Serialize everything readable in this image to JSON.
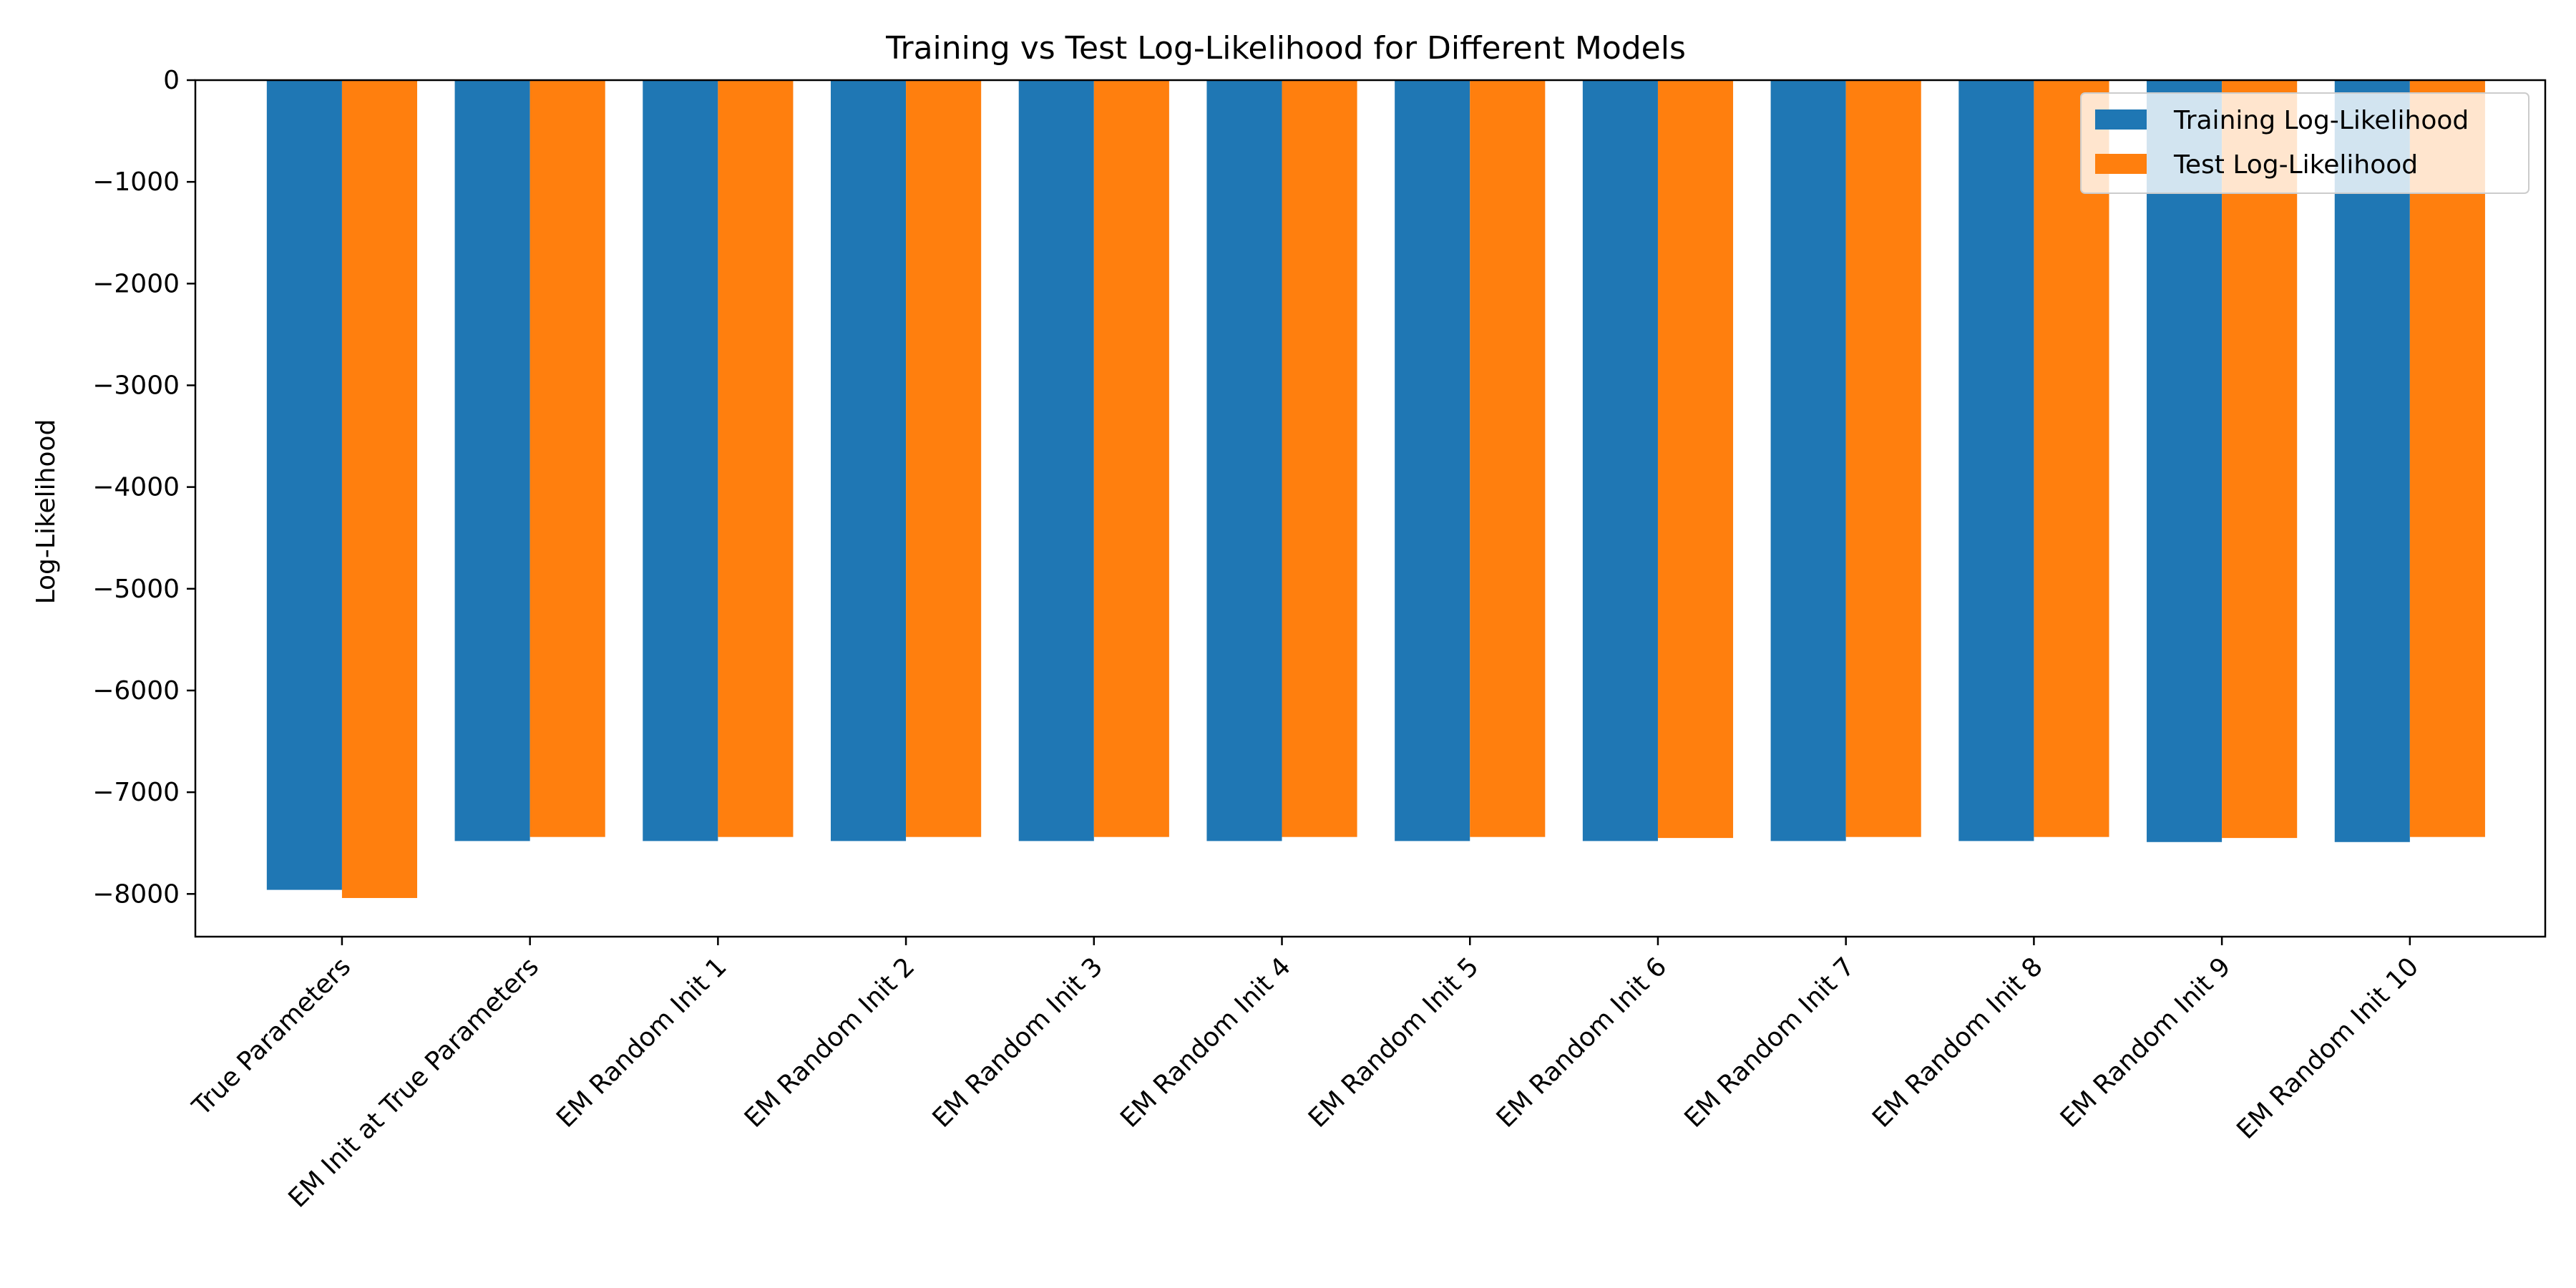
{
  "chart_data": {
    "type": "bar",
    "title": "Training vs Test Log-Likelihood for Different Models",
    "xlabel": "",
    "ylabel": "Log-Likelihood",
    "ylim": [
      -8420,
      0
    ],
    "yticks": [
      0,
      -1000,
      -2000,
      -3000,
      -4000,
      -5000,
      -6000,
      -7000,
      -8000
    ],
    "ytick_labels": [
      "0",
      "−1000",
      "−2000",
      "−3000",
      "−4000",
      "−5000",
      "−6000",
      "−7000",
      "−8000"
    ],
    "grid": false,
    "legend_position": "top-right",
    "categories": [
      "True Parameters",
      "EM Init at True Parameters",
      "EM Random Init 1",
      "EM Random Init 2",
      "EM Random Init 3",
      "EM Random Init 4",
      "EM Random Init 5",
      "EM Random Init 6",
      "EM Random Init 7",
      "EM Random Init 8",
      "EM Random Init 9",
      "EM Random Init 10"
    ],
    "series": [
      {
        "name": "Training Log-Likelihood",
        "color": "#1f77b4",
        "values": [
          -7960,
          -7480,
          -7480,
          -7480,
          -7480,
          -7480,
          -7480,
          -7480,
          -7480,
          -7480,
          -7490,
          -7490
        ]
      },
      {
        "name": "Test Log-Likelihood",
        "color": "#ff7f0e",
        "values": [
          -8040,
          -7440,
          -7440,
          -7440,
          -7440,
          -7440,
          -7440,
          -7450,
          -7440,
          -7440,
          -7450,
          -7440
        ]
      }
    ]
  }
}
